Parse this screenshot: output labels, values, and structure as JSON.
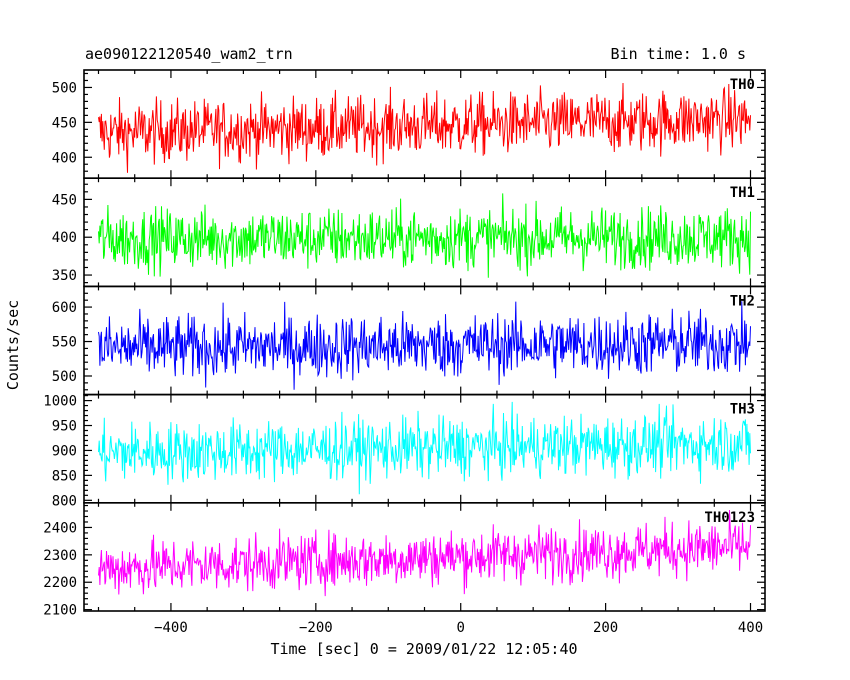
{
  "header": {
    "title": "ae090122120540_wam2_trn",
    "bin_time": "Bin time: 1.0 s"
  },
  "chart_data": {
    "type": "line",
    "xlabel": "Time [sec] 0 = 2009/01/22 12:05:40",
    "ylabel": "Counts/sec",
    "xlim": [
      -520,
      420
    ],
    "x_range": [
      -500,
      400
    ],
    "x_step": 1.0,
    "x_ticks": [
      -400,
      -200,
      0,
      200,
      400
    ],
    "x_tick_labels": [
      "−400",
      "−200",
      "0",
      "200",
      "400"
    ],
    "panels": [
      {
        "name": "TH0",
        "color": "#ff0000",
        "ylim": [
          370,
          525
        ],
        "y_ticks": [
          400,
          450,
          500
        ],
        "y_tick_labels": [
          "400",
          "450",
          "500"
        ],
        "mean": 435,
        "mean_end": 455,
        "spread": 22
      },
      {
        "name": "TH1",
        "color": "#00ff00",
        "ylim": [
          335,
          478
        ],
        "y_ticks": [
          350,
          400,
          450
        ],
        "y_tick_labels": [
          "350",
          "400",
          "450"
        ],
        "mean": 398,
        "mean_end": 400,
        "spread": 20
      },
      {
        "name": "TH2",
        "color": "#0000ff",
        "ylim": [
          473,
          630
        ],
        "y_ticks": [
          500,
          550,
          600
        ],
        "y_tick_labels": [
          "500",
          "550",
          "600"
        ],
        "mean": 540,
        "mean_end": 548,
        "spread": 23
      },
      {
        "name": "TH3",
        "color": "#00ffff",
        "ylim": [
          795,
          1012
        ],
        "y_ticks": [
          800,
          850,
          900,
          950,
          1000
        ],
        "y_tick_labels": [
          "800",
          "850",
          "900",
          "950",
          "1000"
        ],
        "mean": 895,
        "mean_end": 915,
        "spread": 30
      },
      {
        "name": "TH0123",
        "color": "#ff00ff",
        "ylim": [
          2095,
          2490
        ],
        "y_ticks": [
          2100,
          2200,
          2300,
          2400
        ],
        "y_tick_labels": [
          "2100",
          "2200",
          "2300",
          "2400"
        ],
        "mean": 2250,
        "mean_end": 2330,
        "spread": 50
      }
    ]
  }
}
